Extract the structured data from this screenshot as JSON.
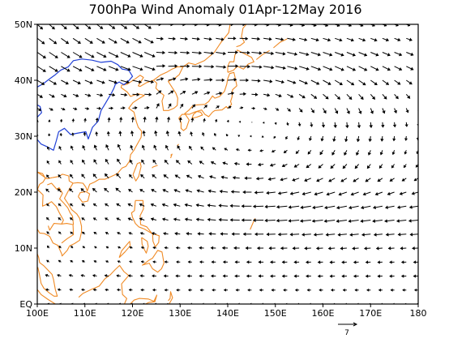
{
  "title": "700hPa Wind Anomaly 01Apr-12May 2016",
  "map": {
    "projection": "cylindrical-equidistant",
    "lon_range": [
      100,
      180
    ],
    "lat_range": [
      0,
      50
    ],
    "frame_color": "#000000",
    "coastline_color": "#f08a24",
    "river_color": "#1f3fd6",
    "vector_color": "#000000"
  },
  "axes": {
    "x_ticks": [
      {
        "value": 100,
        "label": "100E"
      },
      {
        "value": 110,
        "label": "110E"
      },
      {
        "value": 120,
        "label": "120E"
      },
      {
        "value": 130,
        "label": "130E"
      },
      {
        "value": 140,
        "label": "140E"
      },
      {
        "value": 150,
        "label": "150E"
      },
      {
        "value": 160,
        "label": "160E"
      },
      {
        "value": 170,
        "label": "170E"
      },
      {
        "value": 180,
        "label": "180"
      }
    ],
    "y_ticks": [
      {
        "value": 0,
        "label": "EQ"
      },
      {
        "value": 10,
        "label": "10N"
      },
      {
        "value": 20,
        "label": "20N"
      },
      {
        "value": 30,
        "label": "30N"
      },
      {
        "value": 40,
        "label": "40N"
      },
      {
        "value": 50,
        "label": "50N"
      }
    ]
  },
  "reference_vector": {
    "label": "7",
    "magnitude": 7
  },
  "wind_field": {
    "grid_spacing_deg": 2.5,
    "arrow_scale_deg_per_unit": 0.32,
    "description_regions": [
      "northwesterly flow over northern China and Korea",
      "anticyclonic circulation centered near 32N 145E",
      "strong easterly anomalies south of 25N east of 145E",
      "easterlies over the South China Sea and Philippines"
    ]
  }
}
